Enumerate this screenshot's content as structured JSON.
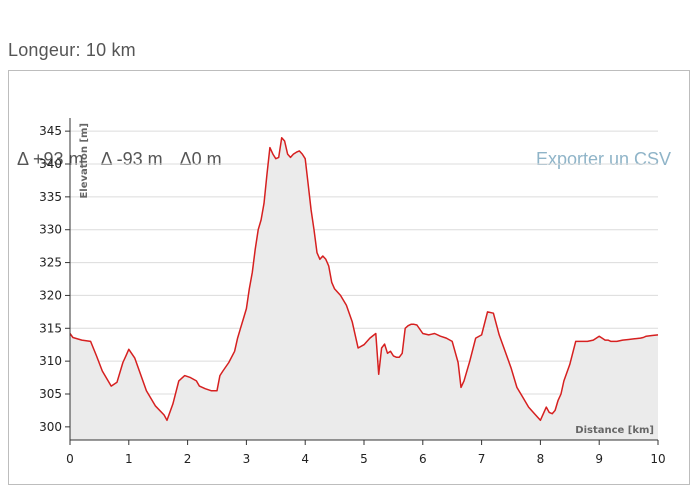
{
  "header": {
    "length_label": "Longeur: 10 km"
  },
  "stats": {
    "gain": "Δ +93 m",
    "loss": "Δ -93 m",
    "net": "Δ0 m"
  },
  "export_label": "Exporter un CSV",
  "colors": {
    "line": "#d62020",
    "fill": "#ebebeb",
    "grid": "#dcdcdc",
    "link": "#8fb4c8"
  },
  "chart_data": {
    "type": "area",
    "title": "",
    "xlabel": "Distance [km]",
    "ylabel": "Elevation [m]",
    "xlim": [
      0,
      10
    ],
    "ylim": [
      298,
      347
    ],
    "xticks": [
      "0",
      "1",
      "2",
      "3",
      "4",
      "5",
      "6",
      "7",
      "8",
      "9",
      "10"
    ],
    "yticks": [
      "300",
      "305",
      "310",
      "315",
      "320",
      "325",
      "330",
      "335",
      "340",
      "345"
    ],
    "grid": true,
    "series": [
      {
        "x": [
          0,
          0.05,
          0.2,
          0.35,
          0.45,
          0.55,
          0.7,
          0.8,
          0.9,
          0.95,
          1.0,
          1.1,
          1.3,
          1.45,
          1.6,
          1.65,
          1.75,
          1.85,
          1.95,
          2.05,
          2.15,
          2.2,
          2.3,
          2.4,
          2.5,
          2.55,
          2.6,
          2.7,
          2.8,
          2.85,
          2.9,
          2.95,
          3.0,
          3.05,
          3.1,
          3.15,
          3.2,
          3.25,
          3.3,
          3.35,
          3.4,
          3.45,
          3.5,
          3.55,
          3.6,
          3.65,
          3.7,
          3.75,
          3.8,
          3.85,
          3.9,
          3.95,
          4.0,
          4.05,
          4.1,
          4.15,
          4.2,
          4.25,
          4.3,
          4.35,
          4.4,
          4.45,
          4.5,
          4.6,
          4.7,
          4.8,
          4.9,
          5.0,
          5.1,
          5.2,
          5.25,
          5.3,
          5.35,
          5.4,
          5.45,
          5.5,
          5.55,
          5.6,
          5.65,
          5.7,
          5.75,
          5.8,
          5.85,
          5.9,
          6.0,
          6.1,
          6.15,
          6.2,
          6.3,
          6.4,
          6.5,
          6.6,
          6.65,
          6.7,
          6.8,
          6.9,
          7.0,
          7.1,
          7.2,
          7.3,
          7.4,
          7.5,
          7.6,
          7.7,
          7.8,
          7.9,
          8.0,
          8.1,
          8.15,
          8.2,
          8.25,
          8.3,
          8.35,
          8.4,
          8.5,
          8.6,
          8.7,
          8.8,
          8.9,
          9.0,
          9.05,
          9.1,
          9.15,
          9.2,
          9.3,
          9.4,
          9.5,
          9.6,
          9.7,
          9.75,
          9.8,
          9.9,
          10.0
        ],
        "y": [
          314.2,
          313.6,
          313.2,
          313.0,
          310.8,
          308.5,
          306.2,
          306.8,
          309.8,
          310.8,
          311.8,
          310.5,
          305.5,
          303.2,
          301.8,
          301.0,
          303.5,
          307.0,
          307.8,
          307.5,
          307.0,
          306.2,
          305.8,
          305.5,
          305.5,
          307.8,
          308.5,
          309.8,
          311.5,
          313.5,
          315.0,
          316.5,
          318.0,
          321.0,
          323.5,
          327.0,
          330.0,
          331.5,
          334.0,
          338.5,
          342.5,
          341.5,
          340.8,
          341.0,
          344.0,
          343.5,
          341.5,
          341.0,
          341.5,
          341.8,
          342.0,
          341.5,
          340.8,
          337.0,
          333.0,
          330.0,
          326.5,
          325.5,
          326.0,
          325.5,
          324.5,
          322.0,
          321.0,
          320.0,
          318.5,
          316.0,
          312.0,
          312.5,
          313.5,
          314.2,
          308.0,
          312.0,
          312.6,
          311.2,
          311.5,
          310.8,
          310.6,
          310.6,
          311.2,
          315.0,
          315.4,
          315.6,
          315.6,
          315.5,
          314.2,
          314.0,
          314.1,
          314.2,
          313.8,
          313.5,
          313.0,
          309.8,
          306.0,
          307.0,
          310.0,
          313.5,
          314.0,
          317.5,
          317.3,
          314.0,
          311.5,
          309.0,
          306.0,
          304.5,
          303.0,
          302.0,
          301.0,
          303.0,
          302.2,
          302.0,
          302.5,
          304.0,
          305.0,
          307.0,
          309.5,
          313.0,
          313.0,
          313.0,
          313.2,
          313.8,
          313.5,
          313.2,
          313.2,
          313.0,
          313.0,
          313.2,
          313.3,
          313.4,
          313.5,
          313.6,
          313.8,
          313.9,
          314.0
        ]
      }
    ]
  }
}
